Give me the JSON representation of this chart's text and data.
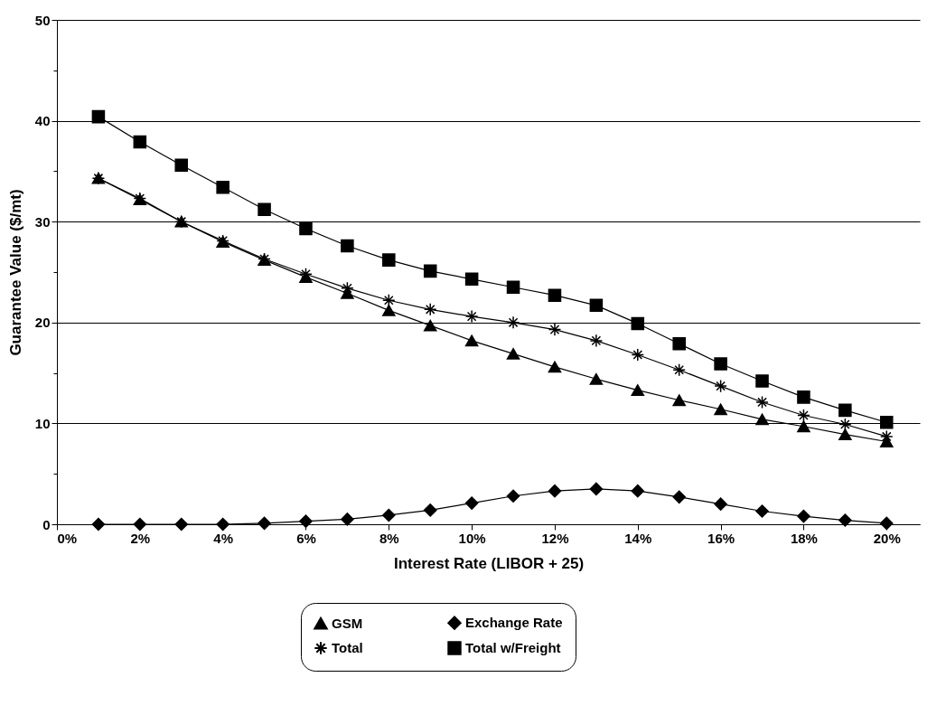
{
  "chart_data": {
    "type": "line",
    "xlabel": "Interest Rate (LIBOR + 25)",
    "ylabel": "Guarantee Value ($/mt)",
    "x": [
      1,
      2,
      3,
      4,
      5,
      6,
      7,
      8,
      9,
      10,
      11,
      12,
      13,
      14,
      15,
      16,
      17,
      18,
      19,
      20
    ],
    "series": [
      {
        "name": "GSM",
        "color": "#000000",
        "marker": "triangle",
        "values": [
          34.3,
          32.2,
          30.0,
          28.0,
          26.2,
          24.5,
          22.9,
          21.2,
          19.7,
          18.2,
          16.9,
          15.6,
          14.4,
          13.3,
          12.3,
          11.4,
          10.4,
          9.7,
          8.9,
          8.2
        ]
      },
      {
        "name": "Exchange Rate",
        "color": "#000000",
        "marker": "diamond",
        "values": [
          0,
          0,
          0,
          0,
          0.1,
          0.3,
          0.5,
          0.9,
          1.4,
          2.1,
          2.8,
          3.3,
          3.5,
          3.3,
          2.7,
          2.0,
          1.3,
          0.8,
          0.4,
          0.1
        ]
      },
      {
        "name": "Total",
        "color": "#000000",
        "marker": "cross",
        "values": [
          34.3,
          32.3,
          30.0,
          28.1,
          26.3,
          24.8,
          23.4,
          22.2,
          21.3,
          20.6,
          20.0,
          19.3,
          18.2,
          16.8,
          15.3,
          13.7,
          12.1,
          10.8,
          9.9,
          8.7
        ]
      },
      {
        "name": "Total w/Freight",
        "color": "#000000",
        "marker": "square",
        "values": [
          40.4,
          37.9,
          35.6,
          33.4,
          31.2,
          29.3,
          27.6,
          26.2,
          25.1,
          24.3,
          23.5,
          22.7,
          21.7,
          19.9,
          17.9,
          15.9,
          14.2,
          12.6,
          11.3,
          10.1
        ]
      }
    ],
    "xlim": [
      0,
      20.8
    ],
    "xticks": [
      {
        "value": 0,
        "label": "0%"
      },
      {
        "value": 2,
        "label": "2%"
      },
      {
        "value": 4,
        "label": "4%"
      },
      {
        "value": 6,
        "label": "6%"
      },
      {
        "value": 8,
        "label": "8%"
      },
      {
        "value": 10,
        "label": "10%"
      },
      {
        "value": 12,
        "label": "12%"
      },
      {
        "value": 14,
        "label": "14%"
      },
      {
        "value": 16,
        "label": "16%"
      },
      {
        "value": 18,
        "label": "18%"
      },
      {
        "value": 20,
        "label": "20%"
      }
    ],
    "ylim": [
      0,
      50
    ],
    "yticks": [
      0,
      {
        "value": 5,
        "label": null
      },
      10,
      {
        "value": 15,
        "label": null
      },
      20,
      {
        "value": 25,
        "label": null
      },
      30,
      {
        "value": 35,
        "label": null
      },
      40,
      {
        "value": 45,
        "label": null
      },
      50
    ],
    "grid": "y",
    "legend": "bottom",
    "line_style": "solid"
  }
}
